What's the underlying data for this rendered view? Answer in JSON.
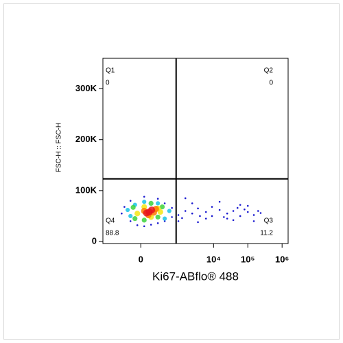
{
  "chart_data": {
    "type": "scatter",
    "xlabel": "Ki67-ABflo® 488",
    "ylabel": "FSC-H :: FSC-H",
    "xscale": "biexponential",
    "xlim": [
      -950,
      1500000
    ],
    "ylim": [
      -4000,
      360000
    ],
    "xticks": [
      0,
      {
        "value": 10000,
        "label": "10⁴"
      },
      {
        "value": 100000,
        "label": "10⁵"
      },
      {
        "value": 1000000,
        "label": "10⁶"
      }
    ],
    "yticks": [
      0,
      {
        "value": 100000,
        "label": "100K"
      },
      {
        "value": 200000,
        "label": "200K"
      },
      {
        "value": 300000,
        "label": "300K"
      }
    ],
    "gate": {
      "x": 800,
      "y": 123000
    },
    "quadrants": [
      {
        "name": "Q1",
        "value": 0,
        "corner": "top-left"
      },
      {
        "name": "Q2",
        "value": 0,
        "corner": "top-right"
      },
      {
        "name": "Q3",
        "value": 11.2,
        "corner": "bottom-right"
      },
      {
        "name": "Q4",
        "value": 88.8,
        "corner": "bottom-left"
      }
    ],
    "series": [
      {
        "color": "#1a1ad0",
        "x": [
          -112,
          -250,
          -35,
          35,
          112,
          213,
          360,
          600,
          934,
          1500,
          2380,
          3500,
          6000,
          9000,
          15000,
          25000,
          37700,
          60000,
          100000,
          150000,
          237000,
          934,
          2380,
          6000,
          15000,
          37700,
          100000,
          1500,
          3500,
          9000,
          25000,
          60000,
          150000,
          -200,
          -112,
          35,
          213,
          360,
          600,
          1200,
          4000,
          20000,
          50000,
          80000,
          200000
        ],
        "values": [
          40000,
          55000,
          32000,
          30000,
          33000,
          36000,
          40000,
          48000,
          52000,
          60000,
          55000,
          65000,
          58000,
          50000,
          62000,
          55000,
          60000,
          50000,
          58000,
          52000,
          56000,
          40000,
          75000,
          45000,
          78000,
          42000,
          70000,
          85000,
          38000,
          68000,
          45000,
          72000,
          40000,
          68000,
          80000,
          88000,
          84000,
          75000,
          66000,
          46000,
          50000,
          48000,
          66000,
          63000,
          60000
        ]
      },
      {
        "color": "#19c3e6",
        "x": [
          -112,
          -60,
          500,
          360,
          35,
          213,
          -150
        ],
        "values": [
          50000,
          72000,
          60000,
          45000,
          78000,
          75000,
          62000
        ]
      },
      {
        "color": "#3cd23c",
        "x": [
          -60,
          35,
          300,
          213,
          112,
          -80
        ],
        "values": [
          45000,
          42000,
          68000,
          48000,
          75000,
          67000
        ]
      },
      {
        "color": "#f5e614",
        "x": [
          -35,
          213,
          112,
          35,
          260
        ],
        "values": [
          55000,
          65000,
          48000,
          68000,
          58000
        ]
      },
      {
        "color": "#ff7800",
        "x": [
          35,
          150,
          80,
          180
        ],
        "values": [
          60000,
          57000,
          52000,
          64000
        ]
      },
      {
        "color": "#e6141e",
        "x": [
          90,
          120,
          60
        ],
        "values": [
          58000,
          62000,
          56000
        ]
      }
    ]
  }
}
